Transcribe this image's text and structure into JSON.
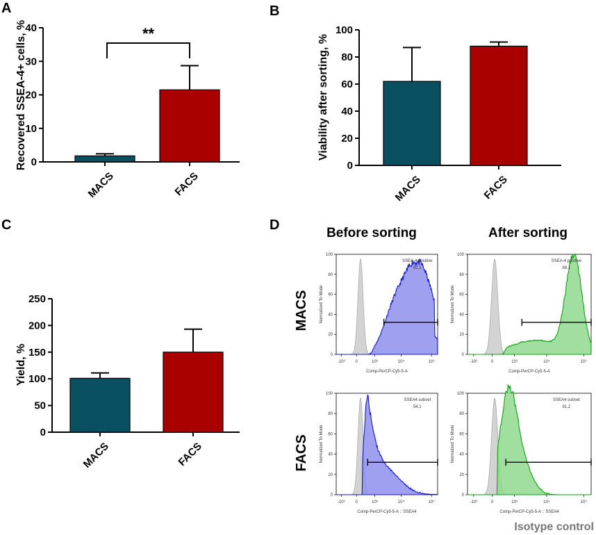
{
  "colors": {
    "macs": "#08505F",
    "facs": "#A90000",
    "isotype": "#D3D3D3",
    "blue": "#1515C8",
    "blue_fill": "#8F8FEF",
    "green": "#10A010",
    "green_fill": "#8FD98F"
  },
  "chart_data": [
    {
      "panel": "A",
      "type": "bar",
      "categories": [
        "MACS",
        "FACS"
      ],
      "values": [
        1.8,
        21.5
      ],
      "errors": [
        0.6,
        7.2
      ],
      "ylabel": "Recovered SSEA-4+ cells, %",
      "ylim": [
        0,
        40
      ],
      "yticks": [
        "0",
        "10",
        "20",
        "30",
        "40"
      ],
      "annotation": "**"
    },
    {
      "panel": "B",
      "type": "bar",
      "categories": [
        "MACS",
        "FACS"
      ],
      "values": [
        62,
        88
      ],
      "errors": [
        25,
        3
      ],
      "ylabel": "Viability after sorting, %",
      "ylim": [
        0,
        100
      ],
      "yticks": [
        "0",
        "20",
        "40",
        "60",
        "80",
        "100"
      ]
    },
    {
      "panel": "C",
      "type": "bar",
      "categories": [
        "MACS",
        "FACS"
      ],
      "values": [
        101,
        150
      ],
      "errors": [
        10,
        43
      ],
      "ylabel": "Yield, %",
      "ylim": [
        0,
        250
      ],
      "yticks": [
        "0",
        "50",
        "100",
        "150",
        "200",
        "250"
      ]
    }
  ],
  "panel_d": {
    "label": "D",
    "col_headers": [
      "Before sorting",
      "After sorting"
    ],
    "row_labels": [
      "MACS",
      "FACS"
    ],
    "isotype_label": "Isotype control",
    "ylabel": "Normalized To Mode",
    "yticks": [
      "0",
      "20",
      "40",
      "60",
      "80",
      "100"
    ],
    "xticks": [
      "-10³",
      "0",
      "10³",
      "10⁴",
      "10⁵"
    ],
    "histograms": [
      {
        "gate_name": "SSEA-4 positive",
        "gate_value": "82,1",
        "xlabel": "Comp-PerCP-Cy5-5-A"
      },
      {
        "gate_name": "SSEA-4 positive",
        "gate_value": "89,1",
        "xlabel": "Comp-PerCP-Cy5-5-A"
      },
      {
        "gate_name": "SSEA4 subset",
        "gate_value": "54,1",
        "xlabel": "Comp-PerCP-Cy5-5-A :: SSEA4"
      },
      {
        "gate_name": "SSEA4 subset",
        "gate_value": "91,2",
        "xlabel": "Comp-PerCP-Cy5-5-A :: SSEA4"
      }
    ]
  }
}
